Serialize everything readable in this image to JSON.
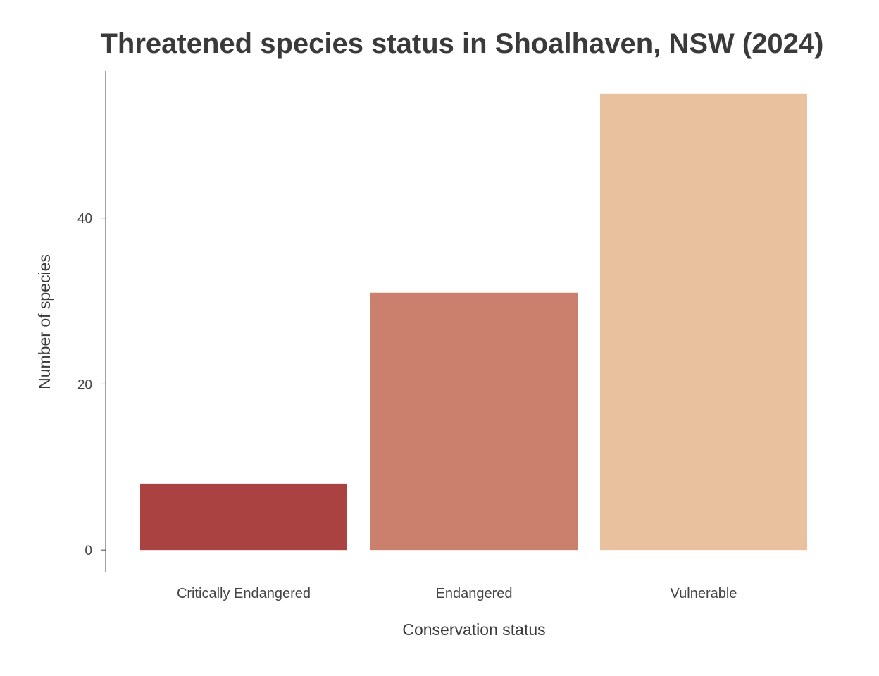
{
  "chart_data": {
    "type": "bar",
    "title": "Threatened species status in Shoalhaven, NSW (2024)",
    "xlabel": "Conservation status",
    "ylabel": "Number of species",
    "categories": [
      "Critically Endangered",
      "Endangered",
      "Vulnerable"
    ],
    "values": [
      8,
      31,
      55
    ],
    "colors": [
      "#a94240",
      "#cb806e",
      "#e9c19e"
    ],
    "ylim": [
      -2.7,
      57.7
    ],
    "yticks": [
      0,
      20,
      40
    ],
    "grid": false,
    "legend": "none"
  }
}
